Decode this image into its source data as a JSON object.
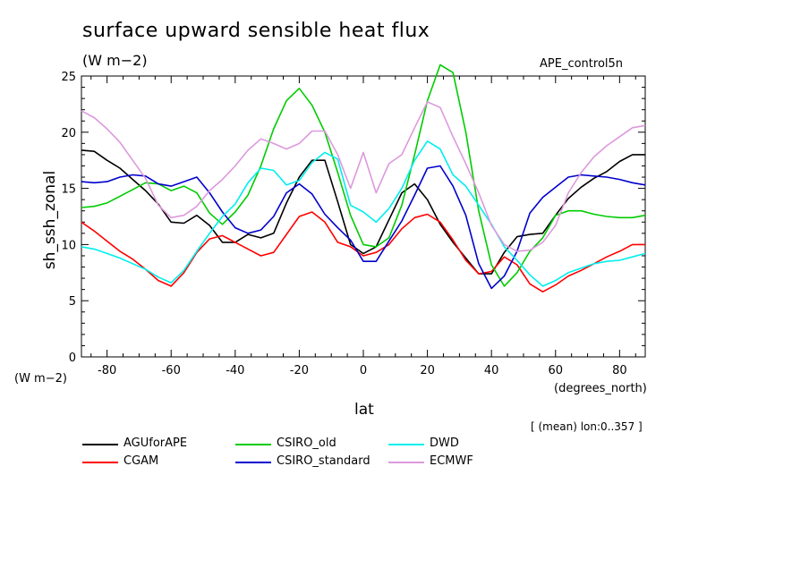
{
  "chart_data": {
    "type": "line",
    "title": "surface upward sensible heat flux",
    "subtitle": "(W m−2)",
    "run_label": "APE_control5n",
    "xlabel": "lat",
    "ylabel": "sh_ssh_zonal",
    "y_units": "(W m−2)",
    "x_units": "(degrees_north)",
    "note": "[ (mean) lon:0..357 ]",
    "xlim": [
      -88,
      88
    ],
    "ylim": [
      0,
      25
    ],
    "x_ticks": [
      "-80",
      "-60",
      "-40",
      "-20",
      "0",
      "20",
      "40",
      "60",
      "80"
    ],
    "y_ticks": [
      "0",
      "5",
      "10",
      "15",
      "20",
      "25"
    ],
    "grid": false,
    "legend_position": "bottom",
    "x": [
      -88,
      -84,
      -80,
      -76,
      -72,
      -68,
      -64,
      -60,
      -56,
      -52,
      -48,
      -44,
      -40,
      -36,
      -32,
      -28,
      -24,
      -20,
      -16,
      -12,
      -8,
      -4,
      0,
      4,
      8,
      12,
      16,
      20,
      24,
      28,
      32,
      36,
      40,
      44,
      48,
      52,
      56,
      60,
      64,
      68,
      72,
      76,
      80,
      84,
      88
    ],
    "series": [
      {
        "name": "AGUforAPE",
        "color": "#000000",
        "values": [
          18.4,
          18.3,
          17.5,
          16.8,
          15.8,
          14.8,
          13.6,
          12.0,
          11.9,
          12.6,
          11.7,
          10.2,
          10.2,
          10.9,
          10.6,
          11.0,
          13.7,
          16.0,
          17.5,
          17.5,
          13.8,
          10.0,
          9.2,
          9.8,
          12.2,
          14.6,
          15.4,
          14.0,
          11.8,
          10.2,
          8.8,
          7.4,
          7.4,
          9.3,
          10.7,
          10.9,
          11.0,
          12.6,
          14.1,
          15.1,
          15.9,
          16.5,
          17.4,
          18.0,
          18.0
        ]
      },
      {
        "name": "CGAM",
        "color": "#ff0000",
        "values": [
          12.0,
          11.2,
          10.3,
          9.4,
          8.7,
          7.8,
          6.8,
          6.3,
          7.5,
          9.3,
          10.5,
          10.8,
          10.2,
          9.6,
          9.0,
          9.3,
          10.9,
          12.5,
          12.9,
          12.0,
          10.2,
          9.8,
          9.0,
          9.3,
          10.0,
          11.4,
          12.4,
          12.7,
          12.0,
          10.4,
          8.6,
          7.4,
          7.6,
          8.9,
          8.2,
          6.5,
          5.8,
          6.4,
          7.2,
          7.7,
          8.3,
          8.9,
          9.4,
          10.0,
          10.0
        ]
      },
      {
        "name": "CSIRO_old",
        "color": "#00cc00",
        "values": [
          13.3,
          13.4,
          13.7,
          14.3,
          14.9,
          15.5,
          15.4,
          14.8,
          15.2,
          14.6,
          12.8,
          11.8,
          12.9,
          14.4,
          17.0,
          20.3,
          22.8,
          23.9,
          22.4,
          20.0,
          16.4,
          12.6,
          10.0,
          9.8,
          10.6,
          13.5,
          18.0,
          22.8,
          26.0,
          25.3,
          20.0,
          13.0,
          8.2,
          6.3,
          7.5,
          9.4,
          10.6,
          12.6,
          13.0,
          13.0,
          12.7,
          12.5,
          12.4,
          12.4,
          12.6
        ]
      },
      {
        "name": "CSIRO_standard",
        "color": "#0000cc",
        "values": [
          15.6,
          15.5,
          15.6,
          16.0,
          16.2,
          16.1,
          15.4,
          15.2,
          15.6,
          16.0,
          14.6,
          12.9,
          11.5,
          11.0,
          11.3,
          12.5,
          14.6,
          15.4,
          14.5,
          12.7,
          11.5,
          10.4,
          8.5,
          8.5,
          10.3,
          12.1,
          14.4,
          16.8,
          17.0,
          15.2,
          12.6,
          8.3,
          6.1,
          7.2,
          9.4,
          12.8,
          14.2,
          15.1,
          16.0,
          16.2,
          16.1,
          16.0,
          15.8,
          15.5,
          15.3
        ]
      },
      {
        "name": "DWD",
        "color": "#00eeee",
        "values": [
          9.8,
          9.6,
          9.2,
          8.8,
          8.3,
          7.8,
          7.1,
          6.6,
          7.7,
          9.4,
          11.0,
          12.5,
          13.6,
          15.5,
          16.8,
          16.6,
          15.3,
          15.7,
          17.3,
          18.2,
          17.6,
          13.5,
          12.9,
          12.0,
          13.2,
          15.0,
          17.5,
          19.2,
          18.5,
          16.2,
          15.2,
          13.5,
          11.8,
          9.8,
          8.6,
          7.3,
          6.3,
          6.8,
          7.5,
          7.9,
          8.3,
          8.5,
          8.6,
          8.9,
          9.2
        ]
      },
      {
        "name": "ECMWF",
        "color": "#dd99dd",
        "values": [
          21.9,
          21.3,
          20.3,
          19.1,
          17.5,
          15.9,
          13.5,
          12.4,
          12.6,
          13.4,
          14.8,
          15.8,
          17.0,
          18.4,
          19.4,
          19.0,
          18.5,
          19.0,
          20.1,
          20.1,
          18.0,
          15.0,
          18.2,
          14.6,
          17.2,
          18.0,
          20.4,
          22.7,
          22.2,
          19.6,
          17.2,
          14.6,
          11.7,
          10.0,
          9.4,
          9.5,
          10.2,
          11.7,
          14.6,
          16.4,
          17.8,
          18.8,
          19.6,
          20.4,
          20.6
        ]
      }
    ]
  }
}
